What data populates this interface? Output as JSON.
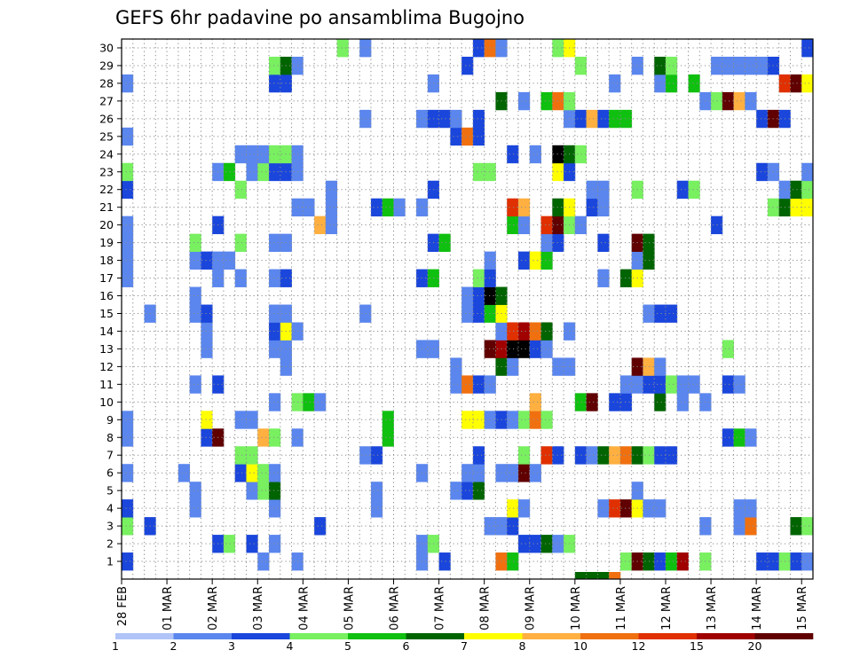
{
  "chart_data": {
    "type": "heatmap",
    "title": "GEFS 6hr padavine po ansamblima Bugojno",
    "xlabel": "",
    "ylabel": "",
    "y_categories": [
      "1",
      "2",
      "3",
      "4",
      "5",
      "6",
      "7",
      "8",
      "9",
      "10",
      "11",
      "12",
      "13",
      "14",
      "15",
      "16",
      "17",
      "18",
      "19",
      "20",
      "21",
      "22",
      "23",
      "24",
      "25",
      "26",
      "27",
      "28",
      "29",
      "30"
    ],
    "x_tick_labels": [
      "28 FEB",
      "01 MAR",
      "02 MAR",
      "03 MAR",
      "04 MAR",
      "05 MAR",
      "06 MAR",
      "07 MAR",
      "08 MAR",
      "09 MAR",
      "10 MAR",
      "11 MAR",
      "12 MAR",
      "13 MAR",
      "14 MAR",
      "15 MAR"
    ],
    "time_steps_per_day": 4,
    "n_time_steps": 61,
    "grid": true,
    "legend_position": "bottom",
    "colorbar": {
      "labels": [
        "1",
        "2",
        "3",
        "4",
        "5",
        "6",
        "7",
        "8",
        "10",
        "12",
        "15",
        "20"
      ],
      "colors": [
        "#b0c4f8",
        "#5a86ee",
        "#1a46dc",
        "#78f060",
        "#10c010",
        "#006400",
        "#ffff00",
        "#ffb040",
        "#f07010",
        "#e03000",
        "#a00000",
        "#600000"
      ]
    },
    "cells": [
      [
        1,
        0,
        2
      ],
      [
        1,
        12,
        1
      ],
      [
        1,
        15,
        1
      ],
      [
        1,
        26,
        1
      ],
      [
        1,
        28,
        2
      ],
      [
        1,
        33,
        8
      ],
      [
        1,
        34,
        4
      ],
      [
        1,
        44,
        3
      ],
      [
        1,
        45,
        11
      ],
      [
        1,
        46,
        5
      ],
      [
        1,
        47,
        2
      ],
      [
        1,
        48,
        4
      ],
      [
        1,
        49,
        10
      ],
      [
        1,
        51,
        3
      ],
      [
        1,
        56,
        2
      ],
      [
        1,
        57,
        2
      ],
      [
        1,
        58,
        3
      ],
      [
        1,
        59,
        2
      ],
      [
        1,
        60,
        1
      ],
      [
        2,
        8,
        2
      ],
      [
        2,
        9,
        3
      ],
      [
        2,
        11,
        2
      ],
      [
        2,
        13,
        1
      ],
      [
        2,
        26,
        1
      ],
      [
        2,
        27,
        3
      ],
      [
        2,
        35,
        2
      ],
      [
        2,
        36,
        2
      ],
      [
        2,
        37,
        5
      ],
      [
        2,
        38,
        1
      ],
      [
        2,
        39,
        3
      ],
      [
        3,
        0,
        3
      ],
      [
        3,
        2,
        2
      ],
      [
        3,
        17,
        2
      ],
      [
        3,
        32,
        1
      ],
      [
        3,
        33,
        1
      ],
      [
        3,
        34,
        2
      ],
      [
        3,
        51,
        1
      ],
      [
        3,
        54,
        1
      ],
      [
        3,
        55,
        8
      ],
      [
        3,
        59,
        5
      ],
      [
        3,
        60,
        3
      ],
      [
        4,
        0,
        2
      ],
      [
        4,
        6,
        1
      ],
      [
        4,
        13,
        1
      ],
      [
        4,
        22,
        1
      ],
      [
        4,
        34,
        6
      ],
      [
        4,
        35,
        1
      ],
      [
        4,
        42,
        1
      ],
      [
        4,
        43,
        9
      ],
      [
        4,
        44,
        11
      ],
      [
        4,
        45,
        6
      ],
      [
        4,
        46,
        1
      ],
      [
        4,
        47,
        1
      ],
      [
        4,
        54,
        1
      ],
      [
        4,
        55,
        1
      ],
      [
        5,
        6,
        1
      ],
      [
        5,
        11,
        1
      ],
      [
        5,
        12,
        3
      ],
      [
        5,
        13,
        5
      ],
      [
        5,
        22,
        1
      ],
      [
        5,
        29,
        1
      ],
      [
        5,
        30,
        2
      ],
      [
        5,
        31,
        5
      ],
      [
        5,
        45,
        1
      ],
      [
        6,
        0,
        1
      ],
      [
        6,
        5,
        1
      ],
      [
        6,
        10,
        2
      ],
      [
        6,
        11,
        6
      ],
      [
        6,
        12,
        3
      ],
      [
        6,
        13,
        1
      ],
      [
        6,
        26,
        1
      ],
      [
        6,
        30,
        1
      ],
      [
        6,
        31,
        1
      ],
      [
        6,
        33,
        1
      ],
      [
        6,
        34,
        1
      ],
      [
        6,
        35,
        11
      ],
      [
        6,
        36,
        1
      ],
      [
        7,
        10,
        3
      ],
      [
        7,
        11,
        3
      ],
      [
        7,
        21,
        1
      ],
      [
        7,
        22,
        2
      ],
      [
        7,
        31,
        2
      ],
      [
        7,
        35,
        3
      ],
      [
        7,
        37,
        9
      ],
      [
        7,
        38,
        2
      ],
      [
        7,
        40,
        2
      ],
      [
        7,
        41,
        1
      ],
      [
        7,
        42,
        5
      ],
      [
        7,
        43,
        7
      ],
      [
        7,
        44,
        8
      ],
      [
        7,
        45,
        5
      ],
      [
        7,
        46,
        3
      ],
      [
        7,
        47,
        2
      ],
      [
        7,
        48,
        2
      ],
      [
        8,
        0,
        1
      ],
      [
        8,
        7,
        2
      ],
      [
        8,
        8,
        11
      ],
      [
        8,
        12,
        7
      ],
      [
        8,
        13,
        3
      ],
      [
        8,
        15,
        1
      ],
      [
        8,
        23,
        4
      ],
      [
        8,
        53,
        2
      ],
      [
        8,
        54,
        4
      ],
      [
        8,
        55,
        1
      ],
      [
        9,
        0,
        1
      ],
      [
        9,
        7,
        6
      ],
      [
        9,
        10,
        1
      ],
      [
        9,
        11,
        1
      ],
      [
        9,
        23,
        4
      ],
      [
        9,
        30,
        6
      ],
      [
        9,
        31,
        6
      ],
      [
        9,
        32,
        1
      ],
      [
        9,
        33,
        2
      ],
      [
        9,
        34,
        1
      ],
      [
        9,
        35,
        3
      ],
      [
        9,
        36,
        8
      ],
      [
        9,
        37,
        3
      ],
      [
        10,
        13,
        1
      ],
      [
        10,
        15,
        3
      ],
      [
        10,
        16,
        4
      ],
      [
        10,
        17,
        1
      ],
      [
        10,
        36,
        7
      ],
      [
        10,
        40,
        4
      ],
      [
        10,
        41,
        11
      ],
      [
        10,
        43,
        2
      ],
      [
        10,
        44,
        2
      ],
      [
        10,
        47,
        5
      ],
      [
        10,
        49,
        1
      ],
      [
        10,
        51,
        1
      ],
      [
        11,
        6,
        1
      ],
      [
        11,
        8,
        2
      ],
      [
        11,
        29,
        1
      ],
      [
        11,
        30,
        8
      ],
      [
        11,
        31,
        2
      ],
      [
        11,
        32,
        1
      ],
      [
        11,
        44,
        1
      ],
      [
        11,
        45,
        1
      ],
      [
        11,
        46,
        2
      ],
      [
        11,
        47,
        2
      ],
      [
        11,
        48,
        3
      ],
      [
        11,
        49,
        1
      ],
      [
        11,
        50,
        1
      ],
      [
        11,
        53,
        2
      ],
      [
        11,
        54,
        1
      ],
      [
        12,
        14,
        1
      ],
      [
        12,
        29,
        1
      ],
      [
        12,
        33,
        5
      ],
      [
        12,
        34,
        1
      ],
      [
        12,
        38,
        1
      ],
      [
        12,
        39,
        1
      ],
      [
        12,
        45,
        11
      ],
      [
        12,
        46,
        7
      ],
      [
        12,
        47,
        1
      ],
      [
        13,
        7,
        1
      ],
      [
        13,
        13,
        1
      ],
      [
        13,
        14,
        1
      ],
      [
        13,
        26,
        1
      ],
      [
        13,
        27,
        1
      ],
      [
        13,
        32,
        11
      ],
      [
        13,
        33,
        10
      ],
      [
        13,
        34,
        12
      ],
      [
        13,
        35,
        12
      ],
      [
        13,
        36,
        2
      ],
      [
        13,
        37,
        1
      ],
      [
        13,
        53,
        3
      ],
      [
        14,
        7,
        1
      ],
      [
        14,
        13,
        2
      ],
      [
        14,
        14,
        6
      ],
      [
        14,
        15,
        1
      ],
      [
        14,
        33,
        1
      ],
      [
        14,
        34,
        9
      ],
      [
        14,
        35,
        10
      ],
      [
        14,
        36,
        8
      ],
      [
        14,
        37,
        5
      ],
      [
        14,
        39,
        1
      ],
      [
        15,
        2,
        1
      ],
      [
        15,
        6,
        1
      ],
      [
        15,
        7,
        2
      ],
      [
        15,
        13,
        1
      ],
      [
        15,
        14,
        1
      ],
      [
        15,
        21,
        1
      ],
      [
        15,
        30,
        1
      ],
      [
        15,
        31,
        2
      ],
      [
        15,
        32,
        4
      ],
      [
        15,
        33,
        6
      ],
      [
        15,
        46,
        1
      ],
      [
        15,
        47,
        2
      ],
      [
        15,
        48,
        2
      ],
      [
        16,
        6,
        1
      ],
      [
        16,
        30,
        1
      ],
      [
        16,
        31,
        2
      ],
      [
        16,
        32,
        12
      ],
      [
        16,
        33,
        5
      ],
      [
        17,
        0,
        1
      ],
      [
        17,
        8,
        1
      ],
      [
        17,
        10,
        1
      ],
      [
        17,
        13,
        1
      ],
      [
        17,
        14,
        2
      ],
      [
        17,
        26,
        2
      ],
      [
        17,
        27,
        4
      ],
      [
        17,
        31,
        3
      ],
      [
        17,
        32,
        2
      ],
      [
        17,
        42,
        1
      ],
      [
        17,
        44,
        5
      ],
      [
        17,
        45,
        6
      ],
      [
        18,
        0,
        1
      ],
      [
        18,
        6,
        1
      ],
      [
        18,
        7,
        2
      ],
      [
        18,
        8,
        1
      ],
      [
        18,
        9,
        1
      ],
      [
        18,
        32,
        1
      ],
      [
        18,
        35,
        2
      ],
      [
        18,
        36,
        6
      ],
      [
        18,
        37,
        4
      ],
      [
        18,
        45,
        1
      ],
      [
        18,
        46,
        5
      ],
      [
        19,
        0,
        1
      ],
      [
        19,
        6,
        3
      ],
      [
        19,
        10,
        3
      ],
      [
        19,
        13,
        1
      ],
      [
        19,
        14,
        1
      ],
      [
        19,
        27,
        2
      ],
      [
        19,
        28,
        4
      ],
      [
        19,
        37,
        1
      ],
      [
        19,
        38,
        2
      ],
      [
        19,
        42,
        2
      ],
      [
        19,
        45,
        11
      ],
      [
        19,
        46,
        5
      ],
      [
        20,
        0,
        1
      ],
      [
        20,
        8,
        2
      ],
      [
        20,
        17,
        7
      ],
      [
        20,
        18,
        1
      ],
      [
        20,
        34,
        4
      ],
      [
        20,
        35,
        1
      ],
      [
        20,
        37,
        9
      ],
      [
        20,
        38,
        11
      ],
      [
        20,
        39,
        3
      ],
      [
        20,
        40,
        1
      ],
      [
        20,
        52,
        2
      ],
      [
        21,
        15,
        1
      ],
      [
        21,
        16,
        1
      ],
      [
        21,
        18,
        1
      ],
      [
        21,
        22,
        2
      ],
      [
        21,
        23,
        4
      ],
      [
        21,
        24,
        1
      ],
      [
        21,
        26,
        1
      ],
      [
        21,
        34,
        9
      ],
      [
        21,
        35,
        7
      ],
      [
        21,
        38,
        5
      ],
      [
        21,
        39,
        6
      ],
      [
        21,
        41,
        2
      ],
      [
        21,
        42,
        1
      ],
      [
        21,
        57,
        3
      ],
      [
        21,
        58,
        5
      ],
      [
        21,
        59,
        6
      ],
      [
        21,
        60,
        6
      ],
      [
        22,
        0,
        2
      ],
      [
        22,
        10,
        3
      ],
      [
        22,
        18,
        1
      ],
      [
        22,
        27,
        2
      ],
      [
        22,
        41,
        1
      ],
      [
        22,
        42,
        1
      ],
      [
        22,
        45,
        3
      ],
      [
        22,
        49,
        2
      ],
      [
        22,
        50,
        3
      ],
      [
        22,
        58,
        1
      ],
      [
        22,
        59,
        5
      ],
      [
        22,
        60,
        3
      ],
      [
        23,
        0,
        3
      ],
      [
        23,
        8,
        1
      ],
      [
        23,
        9,
        4
      ],
      [
        23,
        11,
        1
      ],
      [
        23,
        12,
        3
      ],
      [
        23,
        13,
        2
      ],
      [
        23,
        14,
        2
      ],
      [
        23,
        15,
        1
      ],
      [
        23,
        31,
        3
      ],
      [
        23,
        32,
        3
      ],
      [
        23,
        38,
        6
      ],
      [
        23,
        39,
        2
      ],
      [
        23,
        56,
        2
      ],
      [
        23,
        57,
        1
      ],
      [
        23,
        60,
        1
      ],
      [
        24,
        10,
        1
      ],
      [
        24,
        11,
        1
      ],
      [
        24,
        12,
        1
      ],
      [
        24,
        13,
        3
      ],
      [
        24,
        14,
        3
      ],
      [
        24,
        15,
        1
      ],
      [
        24,
        34,
        2
      ],
      [
        24,
        36,
        1
      ],
      [
        24,
        38,
        12
      ],
      [
        24,
        39,
        5
      ],
      [
        24,
        40,
        3
      ],
      [
        25,
        0,
        1
      ],
      [
        25,
        29,
        2
      ],
      [
        25,
        30,
        8
      ],
      [
        25,
        31,
        2
      ],
      [
        26,
        21,
        1
      ],
      [
        26,
        26,
        1
      ],
      [
        26,
        27,
        2
      ],
      [
        26,
        28,
        2
      ],
      [
        26,
        29,
        1
      ],
      [
        26,
        31,
        2
      ],
      [
        26,
        39,
        1
      ],
      [
        26,
        40,
        2
      ],
      [
        26,
        41,
        7
      ],
      [
        26,
        42,
        2
      ],
      [
        26,
        43,
        4
      ],
      [
        26,
        44,
        4
      ],
      [
        26,
        56,
        2
      ],
      [
        26,
        57,
        11
      ],
      [
        26,
        58,
        2
      ],
      [
        27,
        33,
        5
      ],
      [
        27,
        35,
        1
      ],
      [
        27,
        37,
        4
      ],
      [
        27,
        38,
        8
      ],
      [
        27,
        39,
        3
      ],
      [
        27,
        51,
        1
      ],
      [
        27,
        52,
        3
      ],
      [
        27,
        53,
        11
      ],
      [
        27,
        54,
        7
      ],
      [
        27,
        55,
        1
      ],
      [
        28,
        0,
        1
      ],
      [
        28,
        13,
        2
      ],
      [
        28,
        14,
        2
      ],
      [
        28,
        27,
        1
      ],
      [
        28,
        43,
        1
      ],
      [
        28,
        47,
        1
      ],
      [
        28,
        48,
        4
      ],
      [
        28,
        50,
        4
      ],
      [
        28,
        58,
        9
      ],
      [
        28,
        59,
        11
      ],
      [
        28,
        60,
        6
      ],
      [
        29,
        13,
        3
      ],
      [
        29,
        14,
        5
      ],
      [
        29,
        15,
        1
      ],
      [
        29,
        30,
        2
      ],
      [
        29,
        40,
        3
      ],
      [
        29,
        45,
        1
      ],
      [
        29,
        47,
        5
      ],
      [
        29,
        48,
        3
      ],
      [
        29,
        52,
        1
      ],
      [
        29,
        53,
        1
      ],
      [
        29,
        54,
        1
      ],
      [
        29,
        55,
        1
      ],
      [
        29,
        56,
        1
      ],
      [
        29,
        57,
        2
      ],
      [
        30,
        19,
        3
      ],
      [
        30,
        21,
        1
      ],
      [
        30,
        31,
        2
      ],
      [
        30,
        32,
        8
      ],
      [
        30,
        33,
        1
      ],
      [
        30,
        38,
        3
      ],
      [
        30,
        39,
        6
      ],
      [
        30,
        60,
        2
      ]
    ],
    "bottom_strip": [
      [
        40,
        5
      ],
      [
        41,
        5
      ],
      [
        42,
        5
      ],
      [
        43,
        8
      ]
    ]
  }
}
